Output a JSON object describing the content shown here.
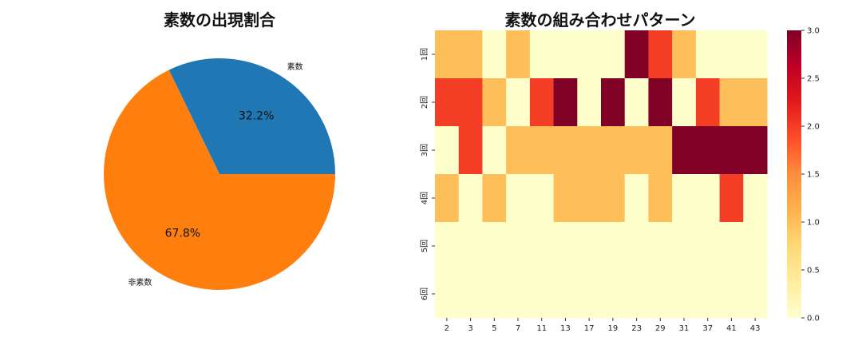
{
  "chart_data": [
    {
      "type": "pie",
      "title": "素数の出現割合",
      "labels": [
        "素数",
        "非素数"
      ],
      "values": [
        32.2,
        67.8
      ],
      "percent_labels": [
        "32.2%",
        "67.8%"
      ],
      "colors": [
        "#1f77b4",
        "#ff7f0e"
      ]
    },
    {
      "type": "heatmap",
      "title": "素数の組み合わせパターン",
      "x_categories": [
        "2",
        "3",
        "5",
        "7",
        "11",
        "13",
        "17",
        "19",
        "23",
        "29",
        "31",
        "37",
        "41",
        "43"
      ],
      "y_categories": [
        "1回",
        "2回",
        "3回",
        "4回",
        "5回",
        "6回"
      ],
      "values": [
        [
          1,
          1,
          0,
          1,
          0,
          0,
          0,
          0,
          3,
          2,
          1,
          0,
          0,
          0
        ],
        [
          2,
          2,
          1,
          0,
          2,
          3,
          0,
          3,
          0,
          3,
          0,
          2,
          1,
          1
        ],
        [
          0,
          2,
          0,
          1,
          1,
          1,
          1,
          1,
          1,
          1,
          3,
          3,
          3,
          3
        ],
        [
          1,
          0,
          1,
          0,
          0,
          1,
          1,
          1,
          0,
          1,
          0,
          0,
          2,
          0
        ],
        [
          0,
          0,
          0,
          0,
          0,
          0,
          0,
          0,
          0,
          0,
          0,
          0,
          0,
          0
        ],
        [
          0,
          0,
          0,
          0,
          0,
          0,
          0,
          0,
          0,
          0,
          0,
          0,
          0,
          0
        ]
      ],
      "colormap": "YlOrRd",
      "colorbar_range": [
        0.0,
        3.0
      ],
      "colorbar_ticks": [
        "0.0",
        "0.5",
        "1.0",
        "1.5",
        "2.0",
        "2.5",
        "3.0"
      ]
    }
  ]
}
